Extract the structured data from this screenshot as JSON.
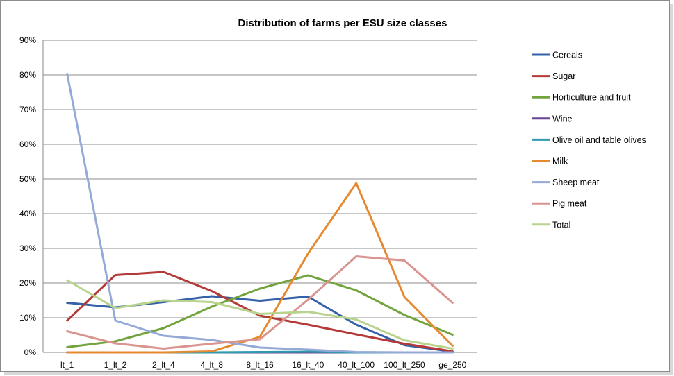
{
  "chart_data": {
    "type": "line",
    "title": "Distribution of farms per ESU size classes",
    "xlabel": "",
    "ylabel": "",
    "categories": [
      "lt_1",
      "1_lt_2",
      "2_lt_4",
      "4_lt_8",
      "8_lt_16",
      "16_lt_40",
      "40_lt_100",
      "100_lt_250",
      "ge_250"
    ],
    "ylim": [
      0,
      90
    ],
    "y_ticks": [
      "0%",
      "10%",
      "20%",
      "30%",
      "40%",
      "50%",
      "60%",
      "70%",
      "80%",
      "90%"
    ],
    "grid": true,
    "legend_position": "right",
    "series": [
      {
        "name": "Cereals",
        "color": "#3461a8",
        "values": [
          14.3,
          13.0,
          14.5,
          16.2,
          14.9,
          16.1,
          8.0,
          2.1,
          0.2
        ]
      },
      {
        "name": "Sugar",
        "color": "#b33a38",
        "values": [
          9.2,
          22.3,
          23.2,
          17.7,
          10.6,
          8.0,
          5.2,
          2.5,
          0.3
        ]
      },
      {
        "name": "Horticulture and fruit",
        "color": "#72a33c",
        "values": [
          1.5,
          3.2,
          7.0,
          13.2,
          18.4,
          22.2,
          17.9,
          10.8,
          5.1
        ]
      },
      {
        "name": "Wine",
        "color": "#6a4494",
        "values": [
          0,
          0,
          0,
          0,
          0,
          0,
          0,
          0,
          0
        ]
      },
      {
        "name": "Olive oil and table olives",
        "color": "#2f9aaf",
        "values": [
          0,
          0,
          0,
          0,
          0.1,
          0.2,
          0,
          0,
          0
        ]
      },
      {
        "name": "Milk",
        "color": "#e58a30",
        "values": [
          0,
          0,
          0,
          0.3,
          4.5,
          28.5,
          48.8,
          16.0,
          1.9
        ]
      },
      {
        "name": "Sheep meat",
        "color": "#94a9d6",
        "values": [
          80.3,
          9.2,
          4.8,
          3.6,
          1.4,
          0.8,
          0.1,
          0,
          0
        ]
      },
      {
        "name": "Pig meat",
        "color": "#d99490",
        "values": [
          6.1,
          2.6,
          1.1,
          2.5,
          3.8,
          15.2,
          27.7,
          26.5,
          14.3
        ]
      },
      {
        "name": "Total",
        "color": "#b8d38e",
        "values": [
          20.8,
          12.8,
          15.0,
          14.5,
          11.1,
          11.7,
          9.5,
          3.5,
          1.1
        ]
      }
    ]
  }
}
